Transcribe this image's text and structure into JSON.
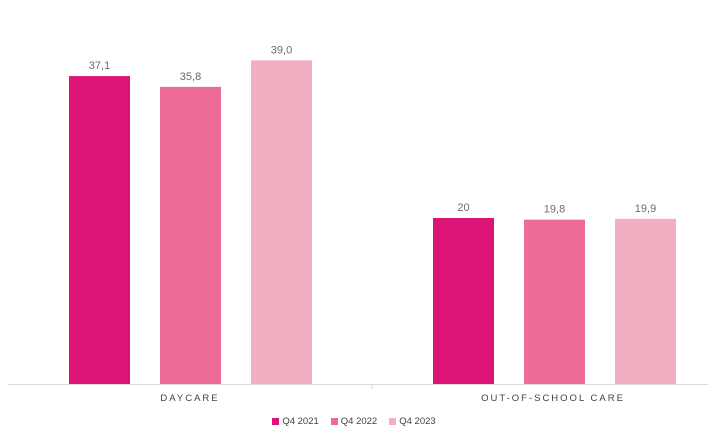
{
  "chart_data": {
    "type": "bar",
    "categories": [
      "DAYCARE",
      "OUT-OF-SCHOOL CARE"
    ],
    "series": [
      {
        "name": "Q4 2021",
        "color": "#dc1477",
        "values": [
          37.1,
          20
        ],
        "labels": [
          "37,1",
          "20"
        ]
      },
      {
        "name": "Q4 2022",
        "color": "#ee6c99",
        "values": [
          35.8,
          19.8
        ],
        "labels": [
          "35,8",
          "19,8"
        ]
      },
      {
        "name": "Q4 2023",
        "color": "#f3afc2",
        "values": [
          39.0,
          19.9
        ],
        "labels": [
          "39,0",
          "19,9"
        ]
      }
    ],
    "title": "",
    "xlabel": "",
    "ylabel": "",
    "ylim": [
      0,
      42
    ],
    "grid": false,
    "legend_position": "bottom"
  }
}
